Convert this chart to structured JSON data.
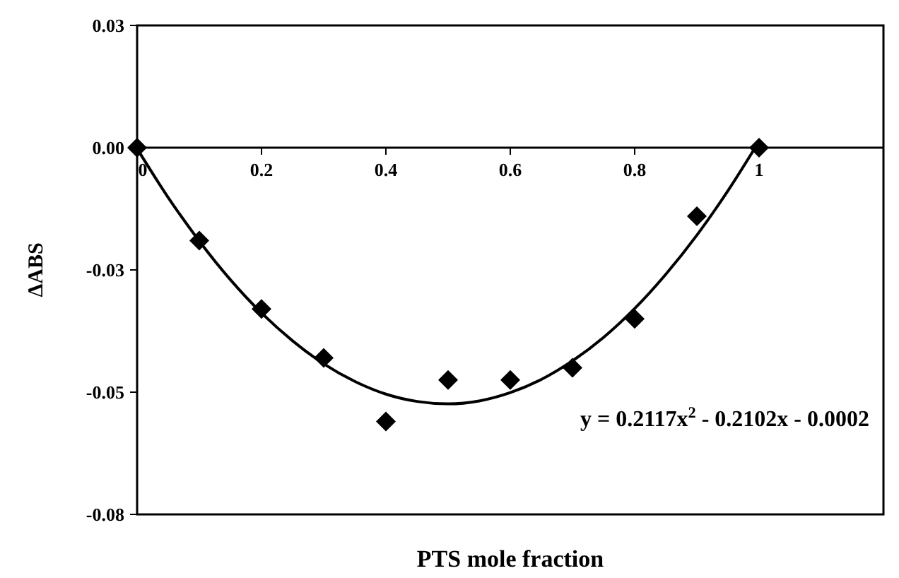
{
  "chart_data": {
    "type": "scatter",
    "xlabel": "PTS mole fraction",
    "ylabel": "ΔABS",
    "x": [
      0,
      0.1,
      0.2,
      0.3,
      0.4,
      0.5,
      0.6,
      0.7,
      0.8,
      0.9,
      1
    ],
    "xlim": [
      0,
      1.2
    ],
    "xticks": [
      0,
      0.2,
      0.4,
      0.6,
      0.8,
      1
    ],
    "ylim": [
      -0.075,
      0.025
    ],
    "yticks": [
      {
        "value": 0.025,
        "label": "0.03"
      },
      {
        "value": 0,
        "label": "0.00"
      },
      {
        "value": -0.025,
        "label": "-0.03"
      },
      {
        "value": -0.05,
        "label": "-0.05"
      },
      {
        "value": -0.075,
        "label": "-0.08"
      }
    ],
    "grid": false,
    "marker": "diamond",
    "series": [
      {
        "color": "#000000",
        "values": [
          0,
          -0.019,
          -0.033,
          -0.043,
          -0.056,
          -0.0475,
          -0.0475,
          -0.045,
          -0.035,
          -0.014,
          0
        ]
      },
      {
        "type": "line",
        "color": "#000000",
        "line_style": "solid",
        "marker": "none",
        "x": [
          0,
          0.05,
          0.1,
          0.15,
          0.2,
          0.25,
          0.3,
          0.35,
          0.4,
          0.45,
          0.5,
          0.55,
          0.6,
          0.65,
          0.7,
          0.75,
          0.8,
          0.85,
          0.9,
          0.95,
          1
        ],
        "values": [
          -0.0002,
          -0.0102,
          -0.0191,
          -0.027,
          -0.0338,
          -0.0395,
          -0.0442,
          -0.0478,
          -0.0504,
          -0.0519,
          -0.0524,
          -0.0518,
          -0.0501,
          -0.0474,
          -0.0436,
          -0.0388,
          -0.0329,
          -0.0259,
          -0.0179,
          -0.0088,
          0.0013
        ]
      }
    ],
    "annotations": [
      "y = 0.2117x$^{2}$ - 0.2102x - 0.0002"
    ]
  }
}
